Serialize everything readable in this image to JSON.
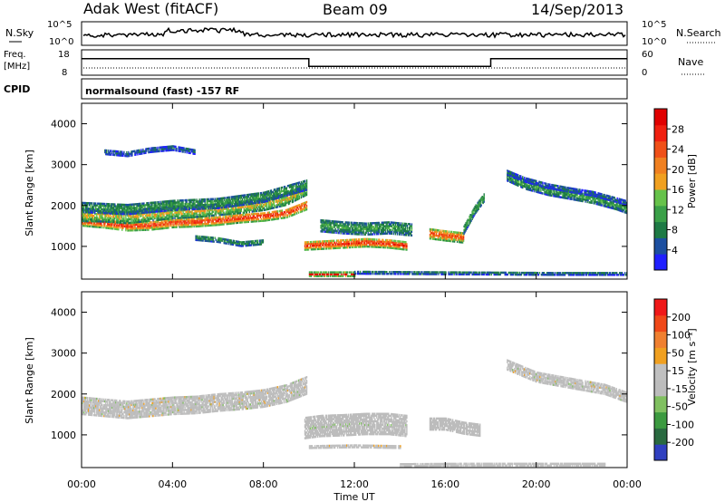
{
  "header": {
    "radar": "Adak West (fitACF)",
    "beam": "Beam 09",
    "date": "14/Sep/2013"
  },
  "status_panels": {
    "nsky": {
      "label": "N.Sky",
      "tick_top": "10^5",
      "tick_bottom": "10^0"
    },
    "nsearch": {
      "label": "N.Search",
      "tick_top": "10^5",
      "tick_bottom": "10^0"
    },
    "freq": {
      "label_line1": "Freq.",
      "label_line2": "[MHz]",
      "tick_top": "18",
      "tick_bottom": "8"
    },
    "nave": {
      "label": "Nave",
      "tick_top": "60",
      "tick_bottom": "0"
    },
    "cpid": {
      "label": "CPID",
      "text": "normalsound (fast) -157 RF"
    }
  },
  "colors": {
    "axis": "#000000",
    "background": "#ffffff",
    "power_scale": [
      "#2020ff",
      "#1c4fa0",
      "#1e7a45",
      "#3aa048",
      "#66c24a",
      "#f0a020",
      "#f08020",
      "#f05018",
      "#f02010",
      "#e00000"
    ],
    "velocity_scale": [
      "#3040c0",
      "#2a6a40",
      "#3c9a40",
      "#80c060",
      "#bcbcbc",
      "#c0c0c0",
      "#f0a020",
      "#f08030",
      "#f04818",
      "#f01818"
    ]
  },
  "chart_data": [
    {
      "type": "line",
      "name": "status-frequency",
      "x": [
        0,
        10,
        10,
        18,
        18,
        24
      ],
      "y": [
        14.5,
        14.5,
        11.5,
        11.5,
        14.5,
        14.5
      ],
      "xlim": [
        0,
        24
      ],
      "ylim": [
        8,
        18
      ]
    },
    {
      "type": "heatmap",
      "name": "power",
      "title": "",
      "xlabel": "",
      "ylabel": "Slant Range [km]",
      "xlim": [
        0,
        24
      ],
      "ylim": [
        200,
        4500
      ],
      "yticks": [
        1000,
        2000,
        3000,
        4000
      ],
      "colorbar": {
        "label": "Power [dB]",
        "ticks": [
          "4",
          "8",
          "12",
          "16",
          "20",
          "24",
          "28"
        ],
        "range": [
          0,
          30
        ]
      },
      "bands": [
        {
          "x": [
            0,
            1,
            2,
            3,
            4,
            5,
            6,
            7,
            8,
            9,
            9.9
          ],
          "center": [
            1600,
            1550,
            1480,
            1500,
            1560,
            1580,
            1620,
            1680,
            1720,
            1800,
            2000
          ],
          "width": 220,
          "value": 26
        },
        {
          "x": [
            0,
            1,
            2,
            3,
            4,
            5,
            6,
            7,
            8,
            9,
            9.9
          ],
          "center": [
            1750,
            1740,
            1700,
            1760,
            1820,
            1850,
            1900,
            1950,
            2020,
            2150,
            2400
          ],
          "width": 300,
          "value": 17
        },
        {
          "x": [
            0,
            2,
            4,
            6,
            8,
            9.9
          ],
          "center": [
            1950,
            1900,
            2000,
            2050,
            2200,
            2500
          ],
          "width": 260,
          "value": 10
        },
        {
          "x": [
            1,
            2,
            3,
            4,
            5
          ],
          "center": [
            3300,
            3250,
            3350,
            3400,
            3300
          ],
          "width": 120,
          "value": 6
        },
        {
          "x": [
            5,
            6,
            7,
            8
          ],
          "center": [
            1200,
            1150,
            1050,
            1100
          ],
          "width": 120,
          "value": 10
        },
        {
          "x": [
            9.8,
            10.5,
            11.5,
            12.5,
            13.5,
            14.3
          ],
          "center": [
            1000,
            1020,
            1050,
            1080,
            1050,
            1000
          ],
          "width": 200,
          "value": 27
        },
        {
          "x": [
            10.5,
            11.5,
            12.5,
            13.5,
            14.5
          ],
          "center": [
            1500,
            1450,
            1420,
            1450,
            1400
          ],
          "width": 300,
          "value": 11
        },
        {
          "x": [
            15.3,
            16,
            16.8
          ],
          "center": [
            1300,
            1250,
            1200
          ],
          "width": 250,
          "value": 24
        },
        {
          "x": [
            16.8,
            17.3,
            17.7
          ],
          "center": [
            1400,
            1900,
            2200
          ],
          "width": 220,
          "value": 12
        },
        {
          "x": [
            10,
            11,
            12
          ],
          "center": [
            300,
            300,
            300
          ],
          "width": 90,
          "value": 28
        },
        {
          "x": [
            12,
            15,
            18,
            21,
            24
          ],
          "center": [
            350,
            340,
            330,
            320,
            320
          ],
          "width": 70,
          "value": 8
        },
        {
          "x": [
            18.7,
            19.5,
            20.5,
            21.5,
            22.5,
            23.5,
            24
          ],
          "center": [
            2700,
            2500,
            2350,
            2250,
            2150,
            2000,
            1900
          ],
          "width": 220,
          "value": 11
        },
        {
          "x": [
            18.7,
            19.5,
            20.5,
            21.5,
            22.5,
            23.5,
            24
          ],
          "center": [
            2800,
            2620,
            2470,
            2370,
            2280,
            2130,
            2050
          ],
          "width": 120,
          "value": 6
        }
      ]
    },
    {
      "type": "heatmap",
      "name": "velocity",
      "title": "",
      "xlabel": "Time UT",
      "ylabel": "Slant Range [km]",
      "xlim": [
        0,
        24
      ],
      "ylim": [
        200,
        4500
      ],
      "xticks": [
        "00:00",
        "04:00",
        "08:00",
        "12:00",
        "16:00",
        "20:00",
        "00:00"
      ],
      "yticks": [
        1000,
        2000,
        3000,
        4000
      ],
      "colorbar": {
        "label": "Velocity [m s⁻¹]",
        "ticks": [
          "-200",
          "-100",
          "-50",
          "-15",
          "15",
          "50",
          "100",
          "200"
        ],
        "range": [
          -250,
          250
        ]
      },
      "bands": [
        {
          "x": [
            0,
            1,
            2,
            3,
            4,
            5,
            6,
            7,
            8,
            9,
            9.9
          ],
          "center": [
            1700,
            1650,
            1600,
            1650,
            1700,
            1720,
            1780,
            1820,
            1880,
            2000,
            2200
          ],
          "width": 420,
          "value": 0
        },
        {
          "x": [
            9.8,
            10.5,
            11.5,
            12.5,
            13.5,
            14.3
          ],
          "center": [
            1150,
            1200,
            1220,
            1250,
            1250,
            1200
          ],
          "width": 500,
          "value": -40
        },
        {
          "x": [
            15.3,
            16,
            16.8,
            17.5
          ],
          "center": [
            1250,
            1250,
            1150,
            1100
          ],
          "width": 280,
          "value": -30
        },
        {
          "x": [
            18.7,
            20,
            21.5,
            23,
            24
          ],
          "center": [
            2700,
            2400,
            2250,
            2100,
            1900
          ],
          "width": 240,
          "value": 0
        },
        {
          "x": [
            10,
            12,
            14
          ],
          "center": [
            700,
            720,
            700
          ],
          "width": 80,
          "value": 40
        },
        {
          "x": [
            14,
            17,
            20,
            23
          ],
          "center": [
            250,
            260,
            260,
            260
          ],
          "width": 60,
          "value": 40
        }
      ]
    }
  ]
}
